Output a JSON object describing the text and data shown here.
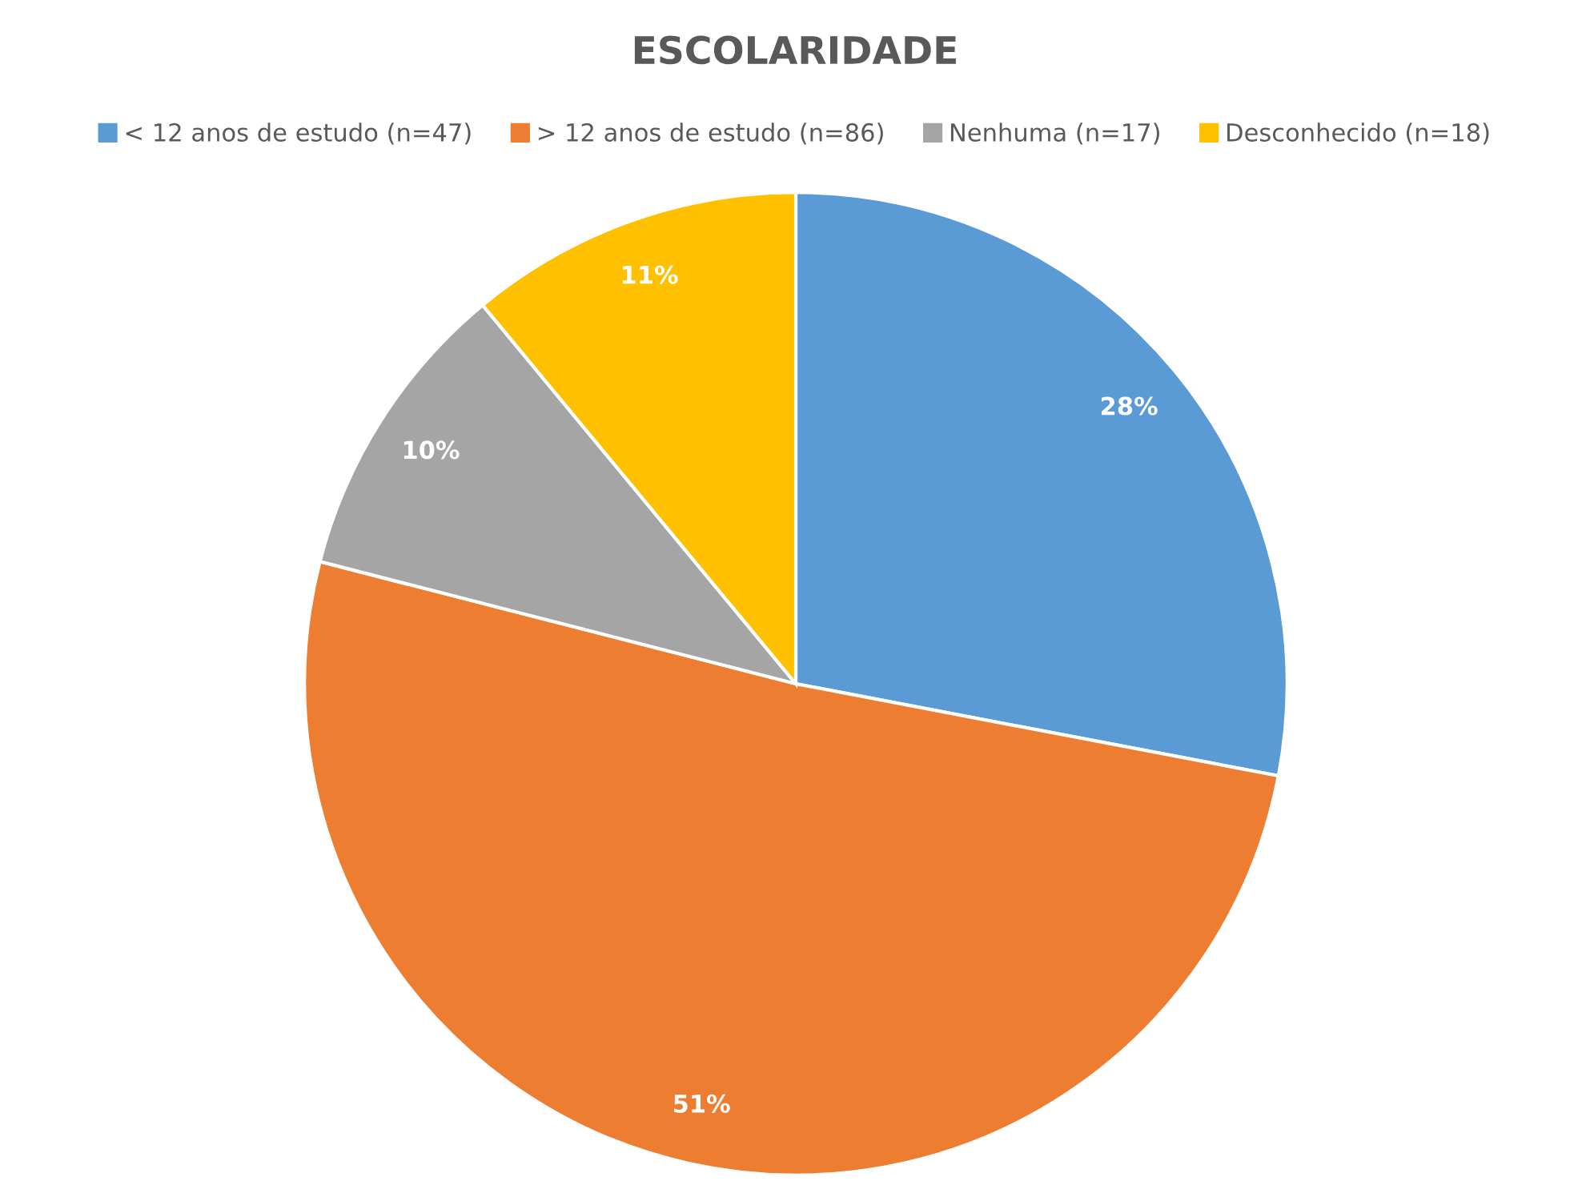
{
  "chart_data": {
    "type": "pie",
    "title": "ESCOLARIDADE",
    "categories": [
      "< 12 anos de estudo (n=47)",
      "> 12 anos de estudo (n=86)",
      "Nenhuma (n=17)",
      "Desconhecido (n=18)"
    ],
    "values": [
      28,
      51,
      10,
      11
    ],
    "colors": [
      "#5b9bd5",
      "#ed7d31",
      "#a5a5a5",
      "#ffc000"
    ],
    "value_labels": [
      "28%",
      "51%",
      "10%",
      "11%"
    ],
    "legend": "top"
  }
}
